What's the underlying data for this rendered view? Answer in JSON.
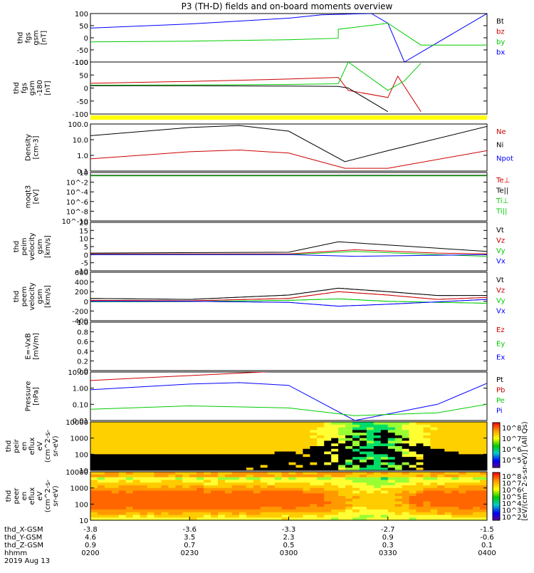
{
  "title": "P3 (TH-D) fields and on-board moments overview",
  "date_label": "2019 Aug 13",
  "colors": {
    "black": "#000000",
    "red": "#cc0000",
    "green": "#00cc00",
    "blue": "#0000ff",
    "yellow": "#ffff00"
  },
  "panels": [
    {
      "ylabel": [
        "thd",
        "fgs",
        "gsm",
        "[nT]"
      ],
      "ticks": [
        "100",
        "50",
        "0",
        "-50",
        "-100"
      ],
      "legend": [
        [
          "Bt",
          "#000000"
        ],
        [
          "bz",
          "#cc0000"
        ],
        [
          "by",
          "#00cc00"
        ],
        [
          "bx",
          "#0000ff"
        ]
      ]
    },
    {
      "ylabel": [
        "thd",
        "fgs",
        "gsm",
        "-180",
        "[nT]"
      ],
      "ticks": [
        "100",
        "50",
        "0",
        "-50",
        "-100"
      ],
      "legend": []
    },
    {
      "ylabel": [],
      "ticks": [],
      "legend": []
    },
    {
      "ylabel": [
        "Density",
        "[cm-3]"
      ],
      "ticks": [
        "100.0",
        "10.0",
        "1.0",
        "0.1"
      ],
      "legend": [
        [
          "Ne",
          "#cc0000"
        ],
        [
          "Ni",
          "#000000"
        ],
        [
          "Npot",
          "#0000ff"
        ]
      ]
    },
    {
      "ylabel": [
        "moqt3",
        "[eV]"
      ],
      "ticks": [
        "10",
        "10^-2",
        "10^-4",
        "10^-6",
        "10^-8",
        "10^-10"
      ],
      "legend": [
        [
          "Te⊥",
          "#cc0000"
        ],
        [
          "Te||",
          "#000000"
        ],
        [
          "Ti⊥",
          "#00cc00"
        ],
        [
          "Ti||",
          "#00cc00"
        ]
      ]
    },
    {
      "ylabel": [
        "thd",
        "peim",
        "velocity",
        "gsm",
        "[km/s]"
      ],
      "ticks": [
        "20",
        "15",
        "10",
        "5",
        "0",
        "-5",
        "-10"
      ],
      "legend": [
        [
          "Vt",
          "#000000"
        ],
        [
          "Vz",
          "#cc0000"
        ],
        [
          "Vy",
          "#00cc00"
        ],
        [
          "Vx",
          "#0000ff"
        ]
      ]
    },
    {
      "ylabel": [
        "thd",
        "peem",
        "velocity",
        "gsm",
        "[km/s]"
      ],
      "ticks": [
        "600",
        "400",
        "200",
        "0",
        "-200",
        "-400"
      ],
      "legend": [
        [
          "Vt",
          "#000000"
        ],
        [
          "Vz",
          "#cc0000"
        ],
        [
          "Vy",
          "#00cc00"
        ],
        [
          "Vx",
          "#0000ff"
        ]
      ]
    },
    {
      "ylabel": [
        "E=-VxB",
        "[mV/m]"
      ],
      "ticks": [
        "1.0",
        "0.8",
        "0.6",
        "0.4",
        "0.2",
        "0.0"
      ],
      "legend": [
        [
          "Ez",
          "#cc0000"
        ],
        [
          "Ey",
          "#00cc00"
        ],
        [
          "Ex",
          "#0000ff"
        ]
      ]
    },
    {
      "ylabel": [
        "Pressure",
        "[nPa]"
      ],
      "ticks": [
        "10.00",
        "1.00",
        "0.10",
        "0.01"
      ],
      "legend": [
        [
          "Pt",
          "#000000"
        ],
        [
          "Pb",
          "#cc0000"
        ],
        [
          "Pe",
          "#00cc00"
        ],
        [
          "Pi",
          "#0000ff"
        ]
      ]
    },
    {
      "ylabel": [
        "thd",
        "peir",
        "en",
        "eflux",
        "eV",
        "(cm^2-s-",
        "sr-eV)"
      ],
      "ticks": [
        "10000",
        "1000",
        "100",
        "10"
      ],
      "legend": []
    },
    {
      "ylabel": [
        "thd",
        "peer",
        "en",
        "eflux",
        "eV",
        "(cm^2-s-",
        "sr-eV)"
      ],
      "ticks": [
        "10000",
        "1000",
        "100",
        "10"
      ],
      "legend": []
    }
  ],
  "colorbar": {
    "top_ticks": [
      "10^8",
      "10^7",
      "10^6",
      "10^5"
    ],
    "bottom_ticks": [
      "10^8",
      "10^7",
      "10^6",
      "10^5",
      "10^4",
      "10^3",
      "10^2"
    ],
    "label": "[eV/(cm^2-s-sr-eV)] (All Qs)"
  },
  "xaxis": {
    "row_labels": [
      "thd_X-GSM",
      "thd_Y-GSM",
      "thd_Z-GSM",
      "hhmm"
    ],
    "columns": [
      [
        "-3.8",
        "4.6",
        "0.9",
        "0200"
      ],
      [
        "-3.6",
        "3.5",
        "0.7",
        "0230"
      ],
      [
        "-3.3",
        "2.3",
        "0.5",
        "0300"
      ],
      [
        "-2.7",
        "0.9",
        "0.3",
        "0330"
      ],
      [
        "-1.5",
        "-0.6",
        "0.1",
        "0400"
      ]
    ]
  },
  "chart_data": {
    "type": "line",
    "title": "P3 (TH-D) fields and on-board moments overview",
    "x_time_ticks": [
      "0200",
      "0230",
      "0300",
      "0330",
      "0400"
    ],
    "panels": [
      {
        "name": "thd fgs gsm",
        "unit": "nT",
        "ylim": [
          -100,
          100
        ],
        "series": [
          {
            "name": "bx",
            "color": "#0000ff",
            "points": [
              [
                "0200",
                40
              ],
              [
                "0230",
                57
              ],
              [
                "0300",
                81
              ],
              [
                "0310",
                95
              ],
              [
                "0325",
                100
              ],
              [
                "0330",
                60
              ],
              [
                "0335",
                -100
              ],
              [
                "0400",
                100
              ]
            ]
          },
          {
            "name": "by",
            "color": "#00cc00",
            "points": [
              [
                "0200",
                -17
              ],
              [
                "0230",
                -14
              ],
              [
                "0300",
                -8
              ],
              [
                "0315",
                -2
              ],
              [
                "0315",
                35
              ],
              [
                "0330",
                60
              ],
              [
                "0340",
                -30
              ],
              [
                "0400",
                -30
              ]
            ]
          },
          {
            "name": "bz",
            "color": "#cc0000",
            "points": []
          },
          {
            "name": "Bt",
            "color": "#000000",
            "points": []
          }
        ]
      },
      {
        "name": "thd fgs gsm -180",
        "unit": "nT",
        "ylim": [
          -120,
          100
        ],
        "series": [
          {
            "name": "bz",
            "color": "#cc0000",
            "points": [
              [
                "0200",
                10
              ],
              [
                "0230",
                18
              ],
              [
                "0300",
                28
              ],
              [
                "0315",
                35
              ],
              [
                "0318",
                -20
              ],
              [
                "0330",
                -50
              ],
              [
                "0333",
                40
              ],
              [
                "0340",
                -110
              ]
            ]
          },
          {
            "name": "by",
            "color": "#00cc00",
            "points": [
              [
                "0200",
                2
              ],
              [
                "0230",
                3
              ],
              [
                "0300",
                5
              ],
              [
                "0315",
                8
              ],
              [
                "0318",
                100
              ],
              [
                "0330",
                -20
              ],
              [
                "0335",
                20
              ],
              [
                "0340",
                95
              ]
            ]
          },
          {
            "name": "Bt",
            "color": "#000000",
            "points": [
              [
                "0200",
                0
              ],
              [
                "0230",
                0
              ],
              [
                "0300",
                -2
              ],
              [
                "0315",
                -3
              ],
              [
                "0318",
                -10
              ],
              [
                "0330",
                -110
              ]
            ]
          },
          {
            "name": "bx",
            "color": "#0000ff",
            "points": []
          }
        ]
      },
      {
        "name": "Density",
        "unit": "cm-3",
        "scale": "log",
        "ylim": [
          0.1,
          100
        ],
        "series": [
          {
            "name": "Ni",
            "color": "#000000",
            "points": [
              [
                "0200",
                18
              ],
              [
                "0230",
                60
              ],
              [
                "0245",
                80
              ],
              [
                "0300",
                35
              ],
              [
                "0317",
                0.4
              ],
              [
                "0330",
                2
              ],
              [
                "0400",
                70
              ]
            ]
          },
          {
            "name": "Ne",
            "color": "#cc0000",
            "points": [
              [
                "0200",
                0.6
              ],
              [
                "0230",
                1.7
              ],
              [
                "0245",
                2.2
              ],
              [
                "0300",
                1.4
              ],
              [
                "0317",
                0.15
              ],
              [
                "0330",
                0.15
              ],
              [
                "0400",
                2
              ]
            ]
          },
          {
            "name": "Npot",
            "color": "#0000ff",
            "points": []
          }
        ]
      },
      {
        "name": "moqt3",
        "unit": "eV",
        "scale": "log",
        "ylim": [
          1e-10,
          100
        ],
        "series": [
          {
            "name": "Te||",
            "color": "#000000",
            "points": [
              [
                "0200",
                20
              ],
              [
                "0400",
                20
              ]
            ]
          },
          {
            "name": "Ti⊥",
            "color": "#00cc00",
            "points": [
              [
                "0200",
                15
              ],
              [
                "0400",
                15
              ]
            ]
          }
        ]
      },
      {
        "name": "thd peim velocity gsm",
        "unit": "km/s",
        "ylim": [
          -10,
          20
        ],
        "series": [
          {
            "name": "Vt",
            "color": "#000000",
            "points": [
              [
                "0200",
                1
              ],
              [
                "0300",
                1.5
              ],
              [
                "0315",
                8
              ],
              [
                "0330",
                6
              ],
              [
                "0345",
                4
              ],
              [
                "0400",
                2
              ]
            ]
          },
          {
            "name": "Vz",
            "color": "#cc0000",
            "points": [
              [
                "0200",
                0.5
              ],
              [
                "0300",
                0.5
              ],
              [
                "0320",
                3
              ],
              [
                "0345",
                1
              ],
              [
                "0400",
                0.5
              ]
            ]
          },
          {
            "name": "Vy",
            "color": "#00cc00",
            "points": [
              [
                "0200",
                0
              ],
              [
                "0300",
                0
              ],
              [
                "0320",
                2
              ],
              [
                "0345",
                0
              ],
              [
                "0400",
                -1
              ]
            ]
          },
          {
            "name": "Vx",
            "color": "#0000ff",
            "points": [
              [
                "0200",
                0
              ],
              [
                "0300",
                0
              ],
              [
                "0320",
                -1
              ],
              [
                "0400",
                0
              ]
            ]
          }
        ]
      },
      {
        "name": "thd peem velocity gsm",
        "unit": "km/s",
        "ylim": [
          -400,
          600
        ],
        "series": [
          {
            "name": "Vt",
            "color": "#000000",
            "points": [
              [
                "0200",
                60
              ],
              [
                "0230",
                40
              ],
              [
                "0300",
                130
              ],
              [
                "0315",
                270
              ],
              [
                "0330",
                200
              ],
              [
                "0345",
                120
              ],
              [
                "0400",
                120
              ]
            ]
          },
          {
            "name": "Vz",
            "color": "#cc0000",
            "points": [
              [
                "0200",
                20
              ],
              [
                "0230",
                10
              ],
              [
                "0300",
                60
              ],
              [
                "0315",
                200
              ],
              [
                "0330",
                130
              ],
              [
                "0345",
                40
              ],
              [
                "0400",
                80
              ]
            ]
          },
          {
            "name": "Vy",
            "color": "#00cc00",
            "points": [
              [
                "0200",
                -10
              ],
              [
                "0230",
                -5
              ],
              [
                "0300",
                20
              ],
              [
                "0315",
                50
              ],
              [
                "0330",
                0
              ],
              [
                "0400",
                -40
              ]
            ]
          },
          {
            "name": "Vx",
            "color": "#0000ff",
            "points": [
              [
                "0200",
                0
              ],
              [
                "0230",
                0
              ],
              [
                "0300",
                -20
              ],
              [
                "0315",
                -100
              ],
              [
                "0330",
                -60
              ],
              [
                "0400",
                40
              ]
            ]
          }
        ]
      },
      {
        "name": "E=-VxB",
        "unit": "mV/m",
        "ylim": [
          0,
          1
        ],
        "series": []
      },
      {
        "name": "Pressure",
        "unit": "nPa",
        "scale": "log",
        "ylim": [
          0.01,
          10
        ],
        "series": [
          {
            "name": "Pb",
            "color": "#cc0000",
            "points": [
              [
                "0200",
                3
              ],
              [
                "0230",
                6
              ],
              [
                "0300",
                12
              ]
            ]
          },
          {
            "name": "Pi",
            "color": "#0000ff",
            "points": [
              [
                "0200",
                0.8
              ],
              [
                "0230",
                1.8
              ],
              [
                "0245",
                2.2
              ],
              [
                "0300",
                1.5
              ],
              [
                "0320",
                0.01
              ],
              [
                "0345",
                0.1
              ],
              [
                "0400",
                2
              ]
            ]
          },
          {
            "name": "Pe",
            "color": "#00cc00",
            "points": [
              [
                "0200",
                0.05
              ],
              [
                "0230",
                0.08
              ],
              [
                "0300",
                0.06
              ],
              [
                "0320",
                0.02
              ],
              [
                "0345",
                0.03
              ],
              [
                "0400",
                0.1
              ]
            ]
          }
        ]
      },
      {
        "name": "thd peir en eflux",
        "type": "heatmap",
        "unit": "eV",
        "ylim": [
          10,
          10000
        ]
      },
      {
        "name": "thd peer en eflux",
        "type": "heatmap",
        "unit": "eV",
        "ylim": [
          10,
          10000
        ]
      }
    ],
    "spectrogram_description": "ion and electron energy flux vs. energy and time, log colour scale"
  }
}
